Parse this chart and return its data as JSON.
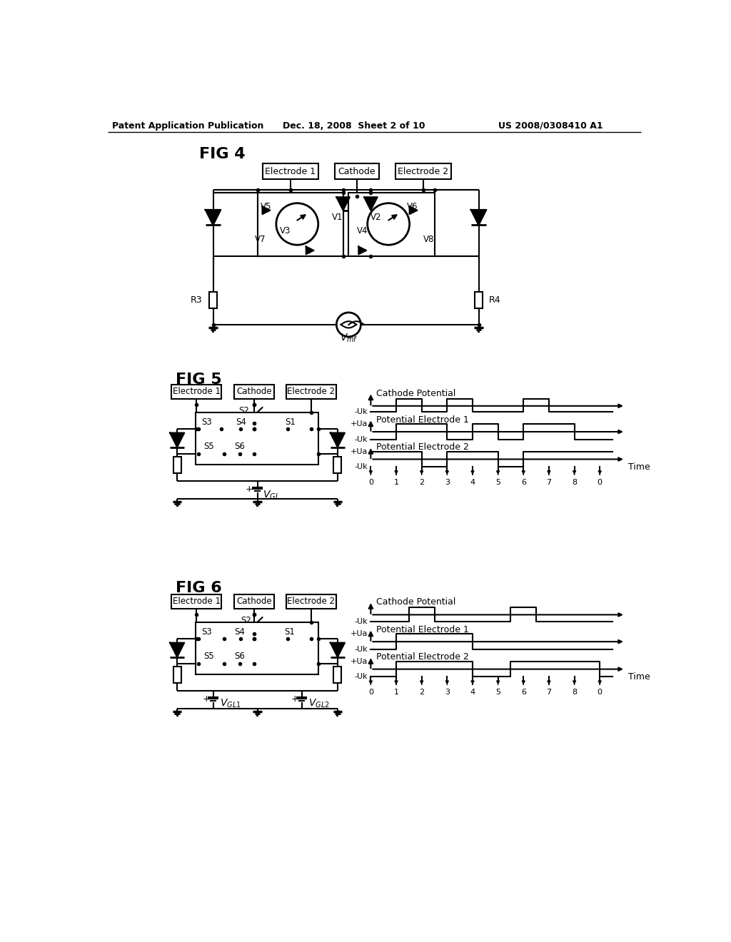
{
  "header_left": "Patent Application Publication",
  "header_mid": "Dec. 18, 2008  Sheet 2 of 10",
  "header_right": "US 2008/0308410 A1",
  "bg_color": "#ffffff"
}
